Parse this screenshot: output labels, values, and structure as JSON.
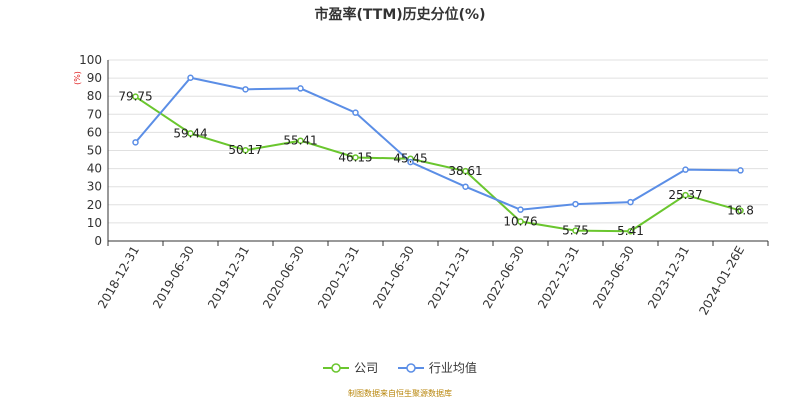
{
  "chart_data": {
    "type": "line",
    "title": "市盈率(TTM)历史分位(%)",
    "ylabel": "(%)",
    "ylim": [
      0,
      100
    ],
    "yticks": [
      0,
      10,
      20,
      30,
      40,
      50,
      60,
      70,
      80,
      90,
      100
    ],
    "categories": [
      "2018-12-31",
      "2019-06-30",
      "2019-12-31",
      "2020-06-30",
      "2020-12-31",
      "2021-06-30",
      "2021-12-31",
      "2022-06-30",
      "2022-12-31",
      "2023-06-30",
      "2023-12-31",
      "2024-01-26E"
    ],
    "series": [
      {
        "name": "公司",
        "color": "#6ac62e",
        "values": [
          79.75,
          59.44,
          50.17,
          55.41,
          46.15,
          45.45,
          38.61,
          10.76,
          5.75,
          5.41,
          25.37,
          16.8
        ],
        "labels": [
          "79.75",
          "59.44",
          "50.17",
          "55.41",
          "46.15",
          "45.45",
          "38.61",
          "10.76",
          "5.75",
          "5.41",
          "25.37",
          "16.8"
        ]
      },
      {
        "name": "行业均值",
        "color": "#5b8ee6",
        "values": [
          54.5,
          90.2,
          83.8,
          84.3,
          70.9,
          43.6,
          30.0,
          17.3,
          20.4,
          21.5,
          39.4,
          39.0
        ]
      }
    ],
    "grid": true,
    "legend_position": "bottom",
    "source": "制图数据来自恒生聚源数据库"
  }
}
